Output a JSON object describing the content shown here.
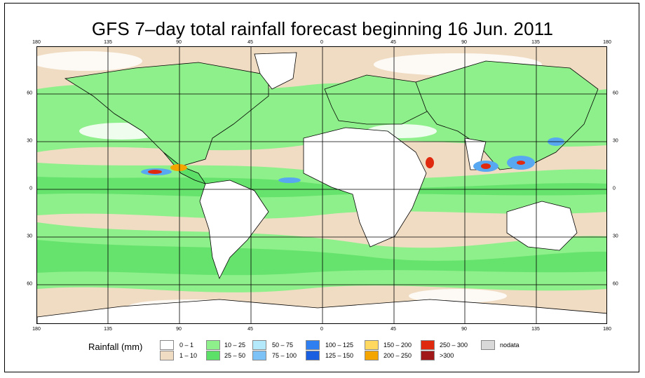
{
  "title": "GFS 7–day total rainfall forecast beginning 16 Jun. 2011",
  "map": {
    "lon_ticks": [
      "180",
      "135",
      "90",
      "45",
      "0",
      "45",
      "90",
      "135",
      "180"
    ],
    "lat_ticks": [
      "60",
      "30",
      "0",
      "30",
      "60"
    ],
    "colors": {
      "ocean_light": "#f0dcc3",
      "land": "#ffffff",
      "green_light": "#8ef08a",
      "green": "#5de067",
      "blue_light": "#9fd8f6",
      "blue": "#57a8f0",
      "red": "#e02a10",
      "orange": "#f5a500",
      "gridline": "#000000"
    }
  },
  "legend": {
    "title": "Rainfall (mm)",
    "items": [
      {
        "label": "0 – 1",
        "color": "#ffffff"
      },
      {
        "label": "1 – 10",
        "color": "#f0dcc3"
      },
      {
        "label": "10 – 25",
        "color": "#8ef08a"
      },
      {
        "label": "25 – 50",
        "color": "#5de067"
      },
      {
        "label": "50 – 75",
        "color": "#b4e8fb"
      },
      {
        "label": "75 – 100",
        "color": "#7cc2f6"
      },
      {
        "label": "100 – 125",
        "color": "#2f7ff0"
      },
      {
        "label": "125 – 150",
        "color": "#1a5fe0"
      },
      {
        "label": "150 – 200",
        "color": "#ffd860"
      },
      {
        "label": "200 – 250",
        "color": "#f5a500"
      },
      {
        "label": "250 – 300",
        "color": "#e02a10"
      },
      {
        "label": ">300",
        "color": "#a01818"
      },
      {
        "label": "nodata",
        "color": "#d9d9d9"
      }
    ]
  }
}
